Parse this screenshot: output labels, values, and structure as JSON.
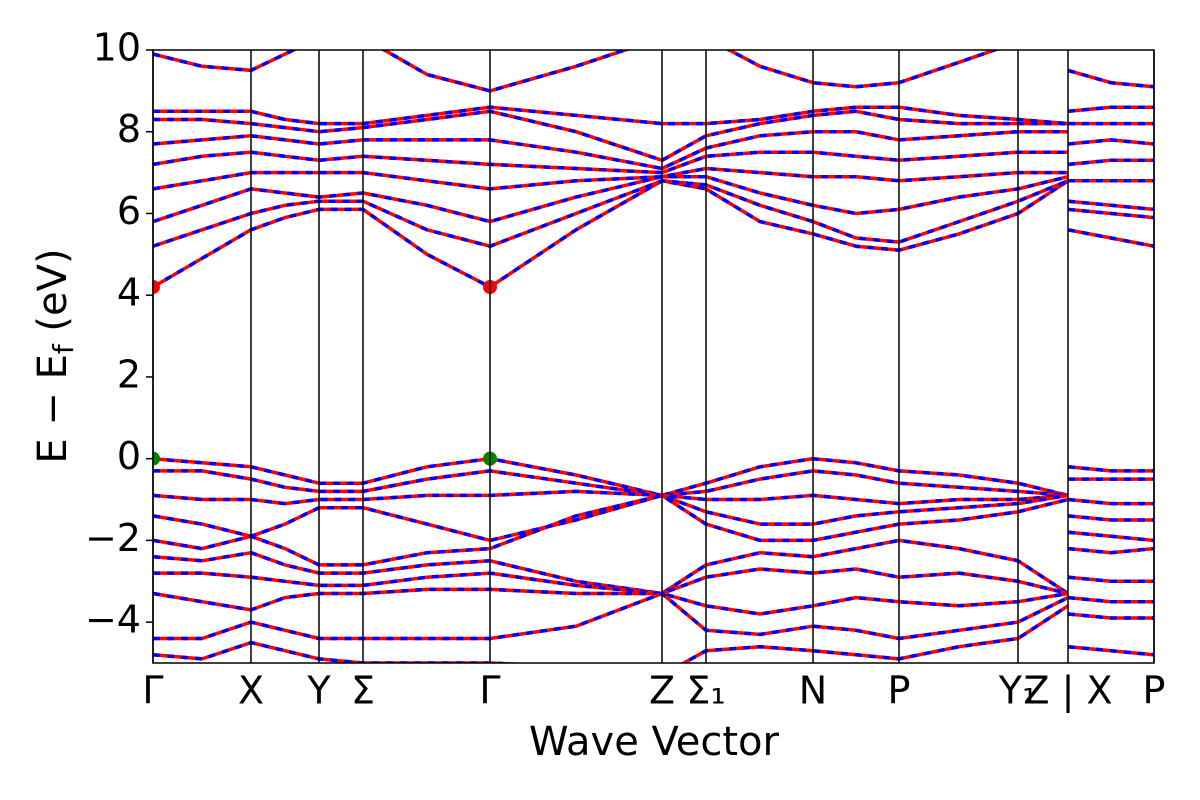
{
  "chart_data": {
    "type": "line",
    "xlabel": "Wave Vector",
    "ylabel": [
      "E − E",
      "f",
      " (eV)"
    ],
    "xlim": [
      0,
      10.01
    ],
    "ylim": [
      -5,
      10
    ],
    "xticks": [
      {
        "value": 0,
        "label": "Γ"
      },
      {
        "value": 0.98,
        "label": "X"
      },
      {
        "value": 1.66,
        "label": "Y"
      },
      {
        "value": 2.1,
        "label": "Σ"
      },
      {
        "value": 3.37,
        "label": "Γ"
      },
      {
        "value": 5.09,
        "label": "Z"
      },
      {
        "value": 5.53,
        "label": "Σ₁"
      },
      {
        "value": 6.6,
        "label": "N"
      },
      {
        "value": 7.46,
        "label": "P"
      },
      {
        "value": 8.65,
        "label": "Y₁"
      },
      {
        "value": 9.15,
        "label": "Z | X"
      },
      {
        "value": 10.01,
        "label": "P"
      }
    ],
    "yticks": [
      {
        "value": -4,
        "label": "−4"
      },
      {
        "value": -2,
        "label": "−2"
      },
      0,
      2,
      4,
      6,
      8,
      10
    ],
    "line_colors": [
      "#ff0000",
      "#0000ff"
    ],
    "line_styles": [
      "solid",
      "dashed"
    ],
    "x": [
      0,
      0.49,
      0.98,
      1.32,
      1.66,
      2.1,
      2.74,
      3.37,
      4.23,
      5.09,
      5.53,
      6.07,
      6.6,
      7.03,
      7.46,
      8.06,
      8.65,
      9.15,
      9.15,
      9.15,
      9.58,
      10.01
    ],
    "series": [
      {
        "values": [
          4.2,
          4.9,
          5.6,
          5.9,
          6.1,
          6.1,
          5.0,
          4.2,
          5.6,
          6.8,
          6.6,
          5.8,
          5.5,
          5.2,
          5.1,
          5.5,
          6.0,
          6.8,
          null,
          5.6,
          5.4,
          5.2
        ]
      },
      {
        "values": [
          5.2,
          5.6,
          6.0,
          6.2,
          6.3,
          6.3,
          5.6,
          5.2,
          6.0,
          6.8,
          6.7,
          6.2,
          5.8,
          5.4,
          5.3,
          5.8,
          6.3,
          6.8,
          null,
          6.1,
          6.0,
          5.9
        ]
      },
      {
        "values": [
          5.8,
          6.2,
          6.6,
          6.5,
          6.4,
          6.5,
          6.2,
          5.8,
          6.4,
          6.9,
          6.9,
          6.5,
          6.2,
          6.0,
          6.1,
          6.4,
          6.6,
          6.9,
          null,
          6.3,
          6.2,
          6.1
        ]
      },
      {
        "values": [
          6.6,
          6.8,
          7.0,
          7.0,
          7.0,
          7.0,
          6.8,
          6.6,
          6.8,
          6.9,
          7.1,
          7.0,
          6.9,
          6.9,
          6.8,
          6.9,
          7.0,
          7.0,
          null,
          6.8,
          6.8,
          6.8
        ]
      },
      {
        "values": [
          7.2,
          7.4,
          7.5,
          7.4,
          7.3,
          7.4,
          7.3,
          7.2,
          7.1,
          7.0,
          7.4,
          7.5,
          7.5,
          7.4,
          7.3,
          7.4,
          7.5,
          7.5,
          null,
          7.2,
          7.3,
          7.3
        ]
      },
      {
        "values": [
          7.7,
          7.8,
          7.9,
          7.8,
          7.7,
          7.8,
          7.8,
          7.8,
          7.5,
          7.1,
          7.6,
          7.9,
          8.0,
          8.0,
          7.8,
          7.9,
          8.0,
          8.0,
          null,
          7.7,
          7.8,
          7.7
        ]
      },
      {
        "values": [
          8.3,
          8.3,
          8.2,
          8.1,
          8.0,
          8.1,
          8.3,
          8.5,
          8.0,
          7.3,
          7.9,
          8.2,
          8.4,
          8.5,
          8.3,
          8.2,
          8.2,
          8.2,
          null,
          8.2,
          8.2,
          8.2
        ]
      },
      {
        "values": [
          8.5,
          8.5,
          8.5,
          8.3,
          8.2,
          8.2,
          8.4,
          8.6,
          8.4,
          8.2,
          8.2,
          8.3,
          8.5,
          8.6,
          8.6,
          8.4,
          8.3,
          8.2,
          null,
          8.5,
          8.6,
          8.6
        ]
      },
      {
        "values": [
          9.9,
          9.6,
          9.5,
          9.9,
          10.3,
          10.3,
          9.4,
          9.0,
          9.6,
          10.3,
          10.3,
          9.6,
          9.2,
          9.1,
          9.2,
          9.7,
          10.2,
          10.3,
          null,
          9.5,
          9.2,
          9.1
        ]
      },
      {
        "values": [
          0,
          -0.1,
          -0.2,
          -0.4,
          -0.6,
          -0.6,
          -0.2,
          0,
          -0.4,
          -0.9,
          -0.6,
          -0.2,
          0,
          -0.1,
          -0.3,
          -0.4,
          -0.6,
          -0.9,
          null,
          -0.2,
          -0.3,
          -0.3
        ]
      },
      {
        "values": [
          -0.3,
          -0.3,
          -0.5,
          -0.7,
          -0.8,
          -0.8,
          -0.5,
          -0.3,
          -0.6,
          -0.9,
          -0.8,
          -0.5,
          -0.3,
          -0.4,
          -0.6,
          -0.7,
          -0.8,
          -0.9,
          null,
          -0.5,
          -0.5,
          -0.5
        ]
      },
      {
        "values": [
          -0.9,
          -1.0,
          -1.0,
          -1.1,
          -1.0,
          -1.0,
          -0.9,
          -0.9,
          -0.8,
          -0.9,
          -1.0,
          -1.0,
          -0.9,
          -1.0,
          -1.1,
          -1.0,
          -1.0,
          -0.9,
          null,
          -1.0,
          -1.1,
          -1.1
        ]
      },
      {
        "values": [
          -1.4,
          -1.6,
          -1.9,
          -1.6,
          -1.2,
          -1.2,
          -1.6,
          -2.0,
          -1.5,
          -0.9,
          -1.3,
          -1.6,
          -1.6,
          -1.4,
          -1.3,
          -1.2,
          -1.1,
          -0.9,
          null,
          -1.4,
          -1.5,
          -1.5
        ]
      },
      {
        "values": [
          -2.0,
          -2.2,
          -1.9,
          -2.2,
          -2.6,
          -2.6,
          -2.3,
          -2.2,
          -1.4,
          -0.9,
          -1.6,
          -2.0,
          -2.0,
          -1.8,
          -1.6,
          -1.5,
          -1.3,
          -1.0,
          null,
          -1.8,
          -1.9,
          -2.0
        ]
      },
      {
        "values": [
          -2.4,
          -2.5,
          -2.3,
          -2.6,
          -2.8,
          -2.8,
          -2.6,
          -2.5,
          -3.0,
          -3.3,
          -2.6,
          -2.3,
          -2.4,
          -2.2,
          -2.0,
          -2.2,
          -2.5,
          -3.3,
          null,
          -2.2,
          -2.3,
          -2.2
        ]
      },
      {
        "values": [
          -2.8,
          -2.8,
          -2.9,
          -3.0,
          -3.1,
          -3.1,
          -2.9,
          -2.8,
          -3.1,
          -3.3,
          -2.9,
          -2.7,
          -2.8,
          -2.7,
          -2.9,
          -2.8,
          -3.0,
          -3.3,
          null,
          -2.9,
          -3.0,
          -3.0
        ]
      },
      {
        "values": [
          -3.3,
          -3.5,
          -3.7,
          -3.4,
          -3.3,
          -3.3,
          -3.2,
          -3.2,
          -3.3,
          -3.3,
          -3.6,
          -3.8,
          -3.6,
          -3.4,
          -3.5,
          -3.6,
          -3.5,
          -3.3,
          null,
          -3.4,
          -3.5,
          -3.5
        ]
      },
      {
        "values": [
          -4.4,
          -4.4,
          -4.0,
          -4.2,
          -4.4,
          -4.4,
          -4.4,
          -4.4,
          -4.1,
          -3.3,
          -4.2,
          -4.3,
          -4.1,
          -4.2,
          -4.4,
          -4.2,
          -4.0,
          -3.4,
          null,
          -3.8,
          -3.9,
          -3.9
        ]
      },
      {
        "values": [
          -4.8,
          -4.9,
          -4.5,
          -4.7,
          -4.9,
          -5.0,
          -5.0,
          -5.0,
          -5.1,
          -5.3,
          -4.7,
          -4.6,
          -4.7,
          -4.8,
          -4.9,
          -4.6,
          -4.4,
          -3.6,
          null,
          -4.6,
          -4.7,
          -4.8
        ]
      }
    ],
    "points": [
      {
        "x": 0,
        "y": 4.2,
        "color": "#ff0000"
      },
      {
        "x": 3.37,
        "y": 4.2,
        "color": "#ff0000"
      },
      {
        "x": 0,
        "y": 0,
        "color": "#008000"
      },
      {
        "x": 3.37,
        "y": 0,
        "color": "#008000"
      }
    ]
  }
}
